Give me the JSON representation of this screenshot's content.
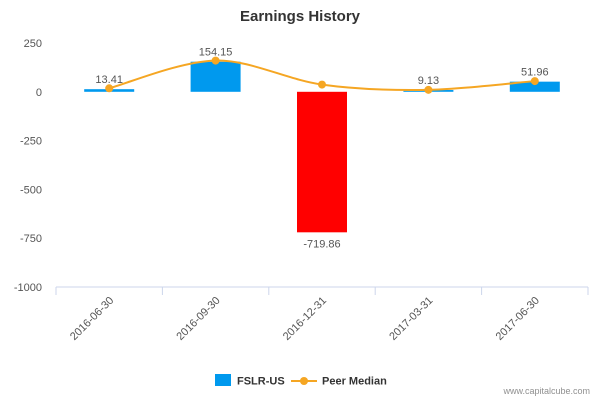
{
  "chart_data": {
    "type": "bar",
    "title": "Earnings History",
    "categories": [
      "2016-06-30",
      "2016-09-30",
      "2016-12-31",
      "2017-03-31",
      "2017-06-30"
    ],
    "series": [
      {
        "name": "FSLR-US",
        "type": "bar",
        "values": [
          13.41,
          154.15,
          -719.86,
          9.13,
          51.96
        ],
        "labels": [
          "13.41",
          "154.15",
          "-719.86",
          "9.13",
          "51.96"
        ],
        "color": "#0099ee",
        "negative_color": "#ff0000"
      },
      {
        "name": "Peer Median",
        "type": "line",
        "values": [
          18,
          160,
          37,
          10,
          55
        ],
        "color": "#f5a623"
      }
    ],
    "yticks": [
      250,
      0,
      -250,
      -500,
      -750,
      -1000
    ],
    "ytick_labels": [
      "250",
      "0",
      "-250",
      "-500",
      "-750",
      "-1000"
    ],
    "ylim": [
      -1000,
      250
    ],
    "grid": false,
    "legend": "bottom-center"
  },
  "credit": "www.capitalcube.com"
}
